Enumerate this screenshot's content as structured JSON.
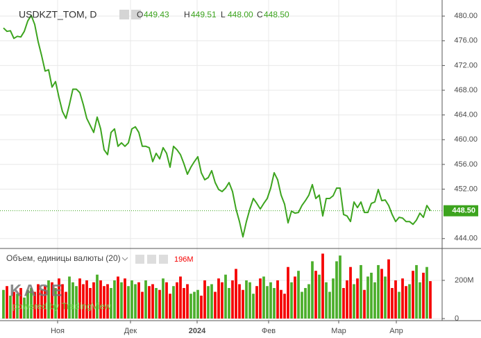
{
  "chart_data": {
    "type": "line",
    "title": "USDKZT_TOM, D",
    "ohlc": [
      {
        "key": "O",
        "value": "449.43"
      },
      {
        "key": "H",
        "value": "449.51"
      },
      {
        "key": "L",
        "value": "448.00"
      },
      {
        "key": "C",
        "value": "448.50"
      }
    ],
    "color": "#3ca41e",
    "values": [
      478.08,
      477.52,
      477.63,
      476.39,
      476.73,
      476.62,
      477.52,
      479.21,
      480.11,
      478.65,
      475.83,
      473.58,
      471.1,
      471.32,
      468.51,
      469.41,
      466.82,
      464.56,
      463.44,
      465.69,
      468.17,
      468.17,
      467.61,
      465.69,
      463.44,
      462.31,
      461.18,
      463.66,
      461.75,
      458.37,
      457.58,
      461.18,
      461.75,
      458.93,
      459.49,
      458.93,
      459.49,
      461.75,
      462.08,
      461.18,
      458.93,
      458.93,
      458.7,
      456.45,
      457.8,
      456.9,
      458.7,
      457.8,
      455.55,
      458.93,
      458.37,
      457.58,
      456.11,
      454.42,
      455.55,
      456.45,
      457.24,
      454.65,
      453.52,
      453.86,
      454.99,
      453.07,
      451.94,
      451.61,
      452.17,
      453.07,
      451.61,
      448.79,
      446.76,
      444.28,
      446.76,
      448.79,
      450.48,
      449.69,
      448.79,
      449.69,
      450.48,
      452.17,
      454.65,
      453.52,
      451.04,
      449.58,
      446.54,
      448.45,
      448.11,
      448.23,
      449.35,
      450.14,
      451.04,
      452.73,
      450.48,
      451.04,
      447.66,
      450.48,
      450.48,
      450.93,
      452.17,
      452.17,
      447.89,
      447.66,
      446.76,
      449.92,
      449.01,
      449.92,
      448.23,
      448.23,
      449.69,
      449.92,
      451.94,
      450.14,
      450.25,
      449.35,
      447.89,
      446.76,
      447.44,
      447.32,
      446.76,
      446.76,
      446.31,
      446.99,
      448.11,
      447.44,
      449.35,
      448.5
    ],
    "xlim": [
      -1,
      126.4
    ],
    "xticks": [
      {
        "value": 15.6,
        "label": "Ноя"
      },
      {
        "value": 36.6,
        "label": "Дек"
      },
      {
        "value": 55.8,
        "label": "2024"
      },
      {
        "value": 76.4,
        "label": "Фев"
      },
      {
        "value": 96.6,
        "label": "Мар"
      },
      {
        "value": 113.2,
        "label": "Апр"
      }
    ],
    "ylim": [
      442.4,
      482.6
    ],
    "yticks": [
      {
        "value": 444,
        "label": "444.00"
      },
      {
        "value": 452,
        "label": "452.00"
      },
      {
        "value": 456,
        "label": "456.00"
      },
      {
        "value": 460,
        "label": "460.00"
      },
      {
        "value": 464,
        "label": "464.00"
      },
      {
        "value": 468,
        "label": "468.00"
      },
      {
        "value": 472,
        "label": "472.00"
      },
      {
        "value": 476,
        "label": "476.00"
      },
      {
        "value": 480,
        "label": "480.00"
      }
    ],
    "last_value": {
      "value": 448.5,
      "label": "448.50"
    },
    "grid": true,
    "volume": {
      "title": "Объем, единицы валюты (20)",
      "last_label": "196M",
      "up_color": "#4caf2c",
      "down_color": "#f50000",
      "values": [
        150,
        170,
        120,
        140,
        130,
        160,
        110,
        150,
        160,
        140,
        180,
        150,
        170,
        200,
        190,
        160,
        210,
        180,
        140,
        220,
        190,
        170,
        210,
        180,
        200,
        160,
        190,
        230,
        200,
        170,
        180,
        160,
        200,
        220,
        190,
        210,
        170,
        200,
        180,
        190,
        140,
        200,
        170,
        180,
        160,
        150,
        210,
        190,
        130,
        170,
        190,
        220,
        160,
        180,
        130,
        140,
        150,
        120,
        200,
        170,
        180,
        140,
        210,
        190,
        230,
        160,
        200,
        260,
        180,
        150,
        200,
        190,
        130,
        170,
        210,
        220,
        170,
        190,
        160,
        200,
        150,
        130,
        270,
        190,
        220,
        250,
        140,
        160,
        180,
        300,
        250,
        230,
        340,
        190,
        140,
        210,
        300,
        330,
        160,
        200,
        270,
        180,
        210,
        280,
        150,
        220,
        240,
        190,
        280,
        260,
        220,
        310,
        160,
        200,
        140,
        210,
        170,
        180,
        250,
        280,
        190,
        240,
        270,
        196
      ],
      "ylim": [
        0,
        367
      ],
      "yticks": [
        0,
        {
          "value": 200,
          "label": "200M"
        }
      ]
    }
  },
  "watermark": {
    "logo": "KASE",
    "caption": "powered by TradingView"
  }
}
